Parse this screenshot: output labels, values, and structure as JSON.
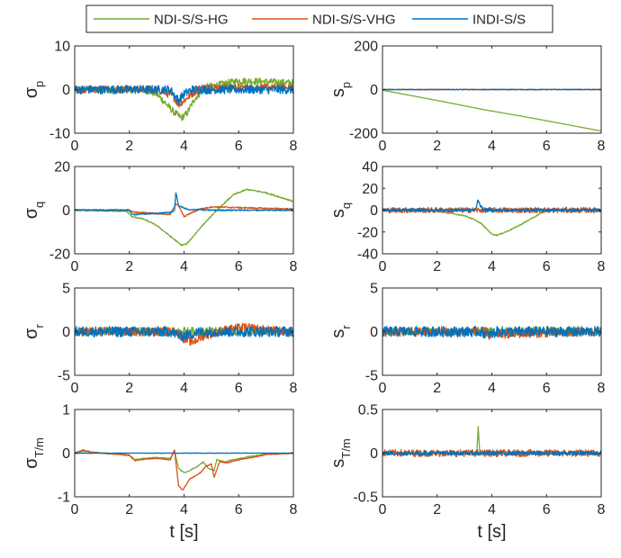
{
  "legend": [
    {
      "name": "NDI-S/S-HG",
      "color": "#77ac30"
    },
    {
      "name": "NDI-S/S-VHG",
      "color": "#d95319"
    },
    {
      "name": "INDI-S/S",
      "color": "#0072bd"
    }
  ],
  "chart_data": [
    {
      "type": "line",
      "ylabel": "σ",
      "ylabel_sub": "p",
      "xlabel": "",
      "xlim": [
        0,
        8
      ],
      "ylim": [
        -10,
        10
      ],
      "yticks": [
        -10,
        0,
        10
      ],
      "xticks": [
        0,
        2,
        4,
        6,
        8
      ],
      "series": [
        {
          "name": "NDI-S/S-HG",
          "color": "#77ac30",
          "noise": 0.8,
          "x": [
            0,
            2.5,
            3.0,
            3.3,
            3.6,
            3.9,
            4.1,
            4.4,
            4.8,
            5.2,
            5.6,
            6.0,
            7.0,
            8.0
          ],
          "y": [
            0,
            0,
            -1,
            -3,
            -5,
            -6.5,
            -5.5,
            -2,
            0.5,
            1,
            1.5,
            2,
            1.8,
            1.5
          ]
        },
        {
          "name": "NDI-S/S-VHG",
          "color": "#d95319",
          "noise": 0.8,
          "x": [
            0,
            3.0,
            3.6,
            3.8,
            4.0,
            4.3,
            4.6,
            5.0,
            8.0
          ],
          "y": [
            0,
            0,
            -1.5,
            -3.5,
            -2.5,
            -1,
            0.5,
            0.5,
            0.5
          ]
        },
        {
          "name": "INDI-S/S",
          "color": "#0072bd",
          "noise": 1.0,
          "x": [
            0,
            3.5,
            3.8,
            4.0,
            4.3,
            8.0
          ],
          "y": [
            0,
            0,
            -2.5,
            -1,
            0,
            0
          ]
        }
      ]
    },
    {
      "type": "line",
      "ylabel": "s",
      "ylabel_sub": "p",
      "xlabel": "",
      "xlim": [
        0,
        8
      ],
      "ylim": [
        -200,
        200
      ],
      "yticks": [
        -200,
        0,
        200
      ],
      "xticks": [
        0,
        2,
        4,
        6,
        8
      ],
      "series": [
        {
          "name": "NDI-S/S-HG",
          "color": "#77ac30",
          "noise": 0,
          "x": [
            0,
            2,
            3.5,
            3.7,
            5,
            6,
            8
          ],
          "y": [
            -3,
            -50,
            -87,
            -92,
            -120,
            -143,
            -190
          ]
        },
        {
          "name": "NDI-S/S-VHG",
          "color": "#d95319",
          "noise": 1.5,
          "x": [
            0,
            8
          ],
          "y": [
            0,
            0
          ]
        },
        {
          "name": "INDI-S/S",
          "color": "#0072bd",
          "noise": 1.5,
          "x": [
            0,
            8
          ],
          "y": [
            0,
            0
          ]
        }
      ]
    },
    {
      "type": "line",
      "ylabel": "σ",
      "ylabel_sub": "q",
      "xlabel": "",
      "xlim": [
        0,
        8
      ],
      "ylim": [
        -20,
        20
      ],
      "yticks": [
        -20,
        0,
        20
      ],
      "xticks": [
        0,
        2,
        4,
        6,
        8
      ],
      "series": [
        {
          "name": "NDI-S/S-HG",
          "color": "#77ac30",
          "noise": 0.3,
          "x": [
            0,
            1.9,
            2.1,
            2.5,
            3.0,
            3.5,
            3.9,
            4.1,
            4.6,
            5.2,
            5.8,
            6.3,
            7.0,
            8.0
          ],
          "y": [
            0,
            -0.5,
            -3,
            -4,
            -7,
            -12,
            -16,
            -15.5,
            -8,
            0,
            7,
            9.5,
            8,
            4
          ]
        },
        {
          "name": "NDI-S/S-VHG",
          "color": "#d95319",
          "noise": 0.3,
          "x": [
            0,
            2.0,
            2.2,
            3.0,
            3.5,
            3.7,
            3.8,
            4.0,
            4.3,
            4.6,
            5.0,
            8.0
          ],
          "y": [
            0,
            0,
            -1,
            -1.5,
            -2,
            3,
            2,
            -3,
            -1,
            0.5,
            1.5,
            0.5
          ]
        },
        {
          "name": "INDI-S/S",
          "color": "#0072bd",
          "noise": 0.3,
          "x": [
            0,
            2.0,
            2.1,
            3.0,
            3.5,
            3.65,
            3.7,
            3.8,
            4.0,
            4.2,
            4.6,
            4.7,
            8.0
          ],
          "y": [
            0,
            0,
            -2,
            -1.5,
            -1,
            0,
            8,
            2,
            1,
            0,
            0.5,
            0,
            0
          ]
        }
      ]
    },
    {
      "type": "line",
      "ylabel": "s",
      "ylabel_sub": "q",
      "xlabel": "",
      "xlim": [
        0,
        8
      ],
      "ylim": [
        -40,
        40
      ],
      "yticks": [
        -40,
        -20,
        0,
        20,
        40
      ],
      "xticks": [
        0,
        2,
        4,
        6,
        8
      ],
      "series": [
        {
          "name": "NDI-S/S-HG",
          "color": "#77ac30",
          "noise": 0.5,
          "x": [
            0,
            2.0,
            2.5,
            3.0,
            3.3,
            3.6,
            4.0,
            4.2,
            4.6,
            5.0,
            5.5,
            6.0,
            8.0
          ],
          "y": [
            0,
            -1,
            -3,
            -5,
            -8,
            -12,
            -22,
            -23,
            -19,
            -14,
            -7,
            0,
            0
          ]
        },
        {
          "name": "NDI-S/S-VHG",
          "color": "#d95319",
          "noise": 2.5,
          "x": [
            0,
            8
          ],
          "y": [
            0,
            0
          ]
        },
        {
          "name": "INDI-S/S",
          "color": "#0072bd",
          "noise": 1.5,
          "x": [
            0,
            3.4,
            3.5,
            3.6,
            3.7,
            8.0
          ],
          "y": [
            0,
            0,
            10,
            3,
            0,
            0
          ]
        }
      ]
    },
    {
      "type": "line",
      "ylabel": "σ",
      "ylabel_sub": "r",
      "xlabel": "",
      "xlim": [
        0,
        8
      ],
      "ylim": [
        -5,
        5
      ],
      "yticks": [
        -5,
        0,
        5
      ],
      "xticks": [
        0,
        2,
        4,
        6,
        8
      ],
      "series": [
        {
          "name": "NDI-S/S-HG",
          "color": "#77ac30",
          "noise": 0.5,
          "x": [
            0,
            8
          ],
          "y": [
            0,
            0
          ]
        },
        {
          "name": "NDI-S/S-VHG",
          "color": "#d95319",
          "noise": 0.5,
          "x": [
            0,
            3.7,
            4.0,
            4.3,
            4.7,
            5.5,
            6.2,
            7.0,
            8.0
          ],
          "y": [
            0,
            0,
            -0.8,
            -1.2,
            -0.5,
            0.2,
            0.5,
            0.2,
            0
          ]
        },
        {
          "name": "INDI-S/S",
          "color": "#0072bd",
          "noise": 0.6,
          "x": [
            0,
            3.5,
            3.9,
            4.2,
            4.6,
            8.0
          ],
          "y": [
            0,
            0,
            -0.5,
            -0.3,
            0,
            0
          ]
        }
      ]
    },
    {
      "type": "line",
      "ylabel": "s",
      "ylabel_sub": "r",
      "xlabel": "",
      "xlim": [
        0,
        8
      ],
      "ylim": [
        -5,
        5
      ],
      "yticks": [
        -5,
        0,
        5
      ],
      "xticks": [
        0,
        2,
        4,
        6,
        8
      ],
      "series": [
        {
          "name": "NDI-S/S-HG",
          "color": "#77ac30",
          "noise": 0.5,
          "x": [
            0,
            8
          ],
          "y": [
            0,
            0
          ]
        },
        {
          "name": "NDI-S/S-VHG",
          "color": "#d95319",
          "noise": 0.5,
          "x": [
            0,
            3.8,
            4.0,
            4.2,
            8.0
          ],
          "y": [
            0,
            0,
            -0.5,
            -0.3,
            0
          ]
        },
        {
          "name": "INDI-S/S",
          "color": "#0072bd",
          "noise": 0.6,
          "x": [
            0,
            3.6,
            3.9,
            4.2,
            8.0
          ],
          "y": [
            0,
            0,
            -0.4,
            0,
            0
          ]
        }
      ]
    },
    {
      "type": "line",
      "ylabel": "σ",
      "ylabel_sub": "T/m",
      "xlabel": "t [s]",
      "xlim": [
        0,
        8
      ],
      "ylim": [
        -1,
        1
      ],
      "yticks": [
        -1,
        0,
        1
      ],
      "xticks": [
        0,
        2,
        4,
        6,
        8
      ],
      "series": [
        {
          "name": "NDI-S/S-HG",
          "color": "#77ac30",
          "noise": 0.01,
          "x": [
            0,
            0.3,
            0.6,
            1.0,
            1.5,
            2.0,
            2.2,
            2.5,
            3.0,
            3.5,
            3.65,
            3.8,
            4.0,
            4.2,
            4.5,
            4.7,
            4.9,
            5.1,
            5.2,
            5.5,
            5.8,
            6.2,
            7.0,
            8.0
          ],
          "y": [
            0,
            0.05,
            0.02,
            0,
            -0.02,
            -0.05,
            -0.15,
            -0.12,
            -0.1,
            -0.12,
            0.05,
            -0.35,
            -0.45,
            -0.4,
            -0.3,
            -0.2,
            -0.35,
            -0.4,
            -0.15,
            -0.2,
            -0.15,
            -0.1,
            -0.02,
            0
          ]
        },
        {
          "name": "NDI-S/S-VHG",
          "color": "#d95319",
          "noise": 0.01,
          "x": [
            0,
            0.3,
            0.6,
            1.0,
            1.5,
            2.0,
            2.2,
            2.5,
            3.0,
            3.5,
            3.65,
            3.8,
            3.95,
            4.2,
            4.6,
            4.8,
            5.0,
            5.1,
            5.3,
            5.6,
            6.0,
            6.5,
            7.0,
            8.0
          ],
          "y": [
            0,
            0.07,
            0.03,
            0,
            -0.02,
            -0.05,
            -0.17,
            -0.14,
            -0.12,
            -0.15,
            0.08,
            -0.75,
            -0.85,
            -0.6,
            -0.45,
            -0.3,
            -0.25,
            -0.55,
            -0.2,
            -0.22,
            -0.15,
            -0.1,
            -0.03,
            0
          ]
        },
        {
          "name": "INDI-S/S",
          "color": "#0072bd",
          "noise": 0.005,
          "x": [
            0,
            8
          ],
          "y": [
            0,
            0
          ]
        }
      ]
    },
    {
      "type": "line",
      "ylabel": "s",
      "ylabel_sub": "T/m",
      "xlabel": "t [s]",
      "xlim": [
        0,
        8
      ],
      "ylim": [
        -0.5,
        0.5
      ],
      "yticks": [
        -0.5,
        0,
        0.5
      ],
      "xticks": [
        0,
        2,
        4,
        6,
        8
      ],
      "series": [
        {
          "name": "NDI-S/S-HG",
          "color": "#77ac30",
          "noise": 0.01,
          "x": [
            0,
            3.45,
            3.5,
            3.55,
            3.6,
            8.0
          ],
          "y": [
            0,
            0,
            0.3,
            0.05,
            0,
            0
          ]
        },
        {
          "name": "NDI-S/S-VHG",
          "color": "#d95319",
          "noise": 0.04,
          "x": [
            0,
            8
          ],
          "y": [
            0,
            0
          ]
        },
        {
          "name": "INDI-S/S",
          "color": "#0072bd",
          "noise": 0.025,
          "x": [
            0,
            8
          ],
          "y": [
            0,
            0
          ]
        }
      ]
    }
  ]
}
